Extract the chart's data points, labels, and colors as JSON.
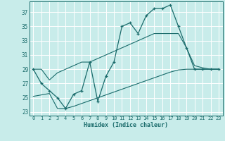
{
  "xlabel": "Humidex (Indice chaleur)",
  "bg_color": "#c8ecea",
  "grid_color": "#ffffff",
  "line_color": "#1a6b6b",
  "xlim": [
    -0.5,
    23.5
  ],
  "ylim": [
    22.5,
    38.5
  ],
  "xticks": [
    0,
    1,
    2,
    3,
    4,
    5,
    6,
    7,
    8,
    9,
    10,
    11,
    12,
    13,
    14,
    15,
    16,
    17,
    18,
    19,
    20,
    21,
    22,
    23
  ],
  "yticks": [
    23,
    25,
    27,
    29,
    31,
    33,
    35,
    37
  ],
  "hours": [
    0,
    1,
    2,
    3,
    4,
    5,
    6,
    7,
    8,
    9,
    10,
    11,
    12,
    13,
    14,
    15,
    16,
    17,
    18,
    19,
    20,
    21,
    22,
    23
  ],
  "temp_line": [
    29,
    27,
    26,
    25,
    23.5,
    25.5,
    26,
    30,
    24.5,
    28,
    30,
    35,
    35.5,
    34,
    36.5,
    37.5,
    37.5,
    38,
    35,
    32,
    29,
    29,
    29,
    29
  ],
  "lower_line": [
    25.2,
    25.4,
    25.6,
    23.5,
    23.5,
    23.8,
    24.2,
    24.6,
    25.0,
    25.4,
    25.8,
    26.2,
    26.6,
    27.0,
    27.4,
    27.8,
    28.2,
    28.6,
    28.9,
    29.0,
    29.0,
    29.0,
    29.0,
    29.0
  ],
  "upper_line": [
    29,
    29,
    27.5,
    28.5,
    29,
    29.5,
    30,
    30,
    30.5,
    31,
    31.5,
    32,
    32.5,
    33,
    33.5,
    34,
    34,
    34,
    34,
    32,
    29.5,
    29.2,
    29,
    29
  ],
  "marker": "+"
}
